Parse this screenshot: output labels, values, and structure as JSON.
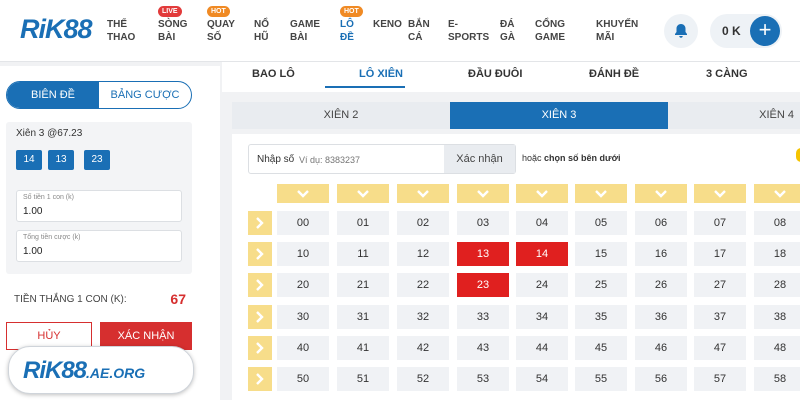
{
  "header": {
    "logo": "RiK88",
    "nav": [
      {
        "label": "THỂ\nTHAO",
        "badge": ""
      },
      {
        "label": "SÒNG\nBÀI",
        "badge": "LIVE"
      },
      {
        "label": "QUAY\nSỐ",
        "badge": "HOT"
      },
      {
        "label": "NỔ\nHŨ",
        "badge": ""
      },
      {
        "label": "GAME\nBÀI",
        "badge": ""
      },
      {
        "label": "LÔ\nĐỀ",
        "badge": "HOT",
        "active": true
      },
      {
        "label": "KENO",
        "badge": ""
      },
      {
        "label": "BẮN\nCÁ",
        "badge": ""
      },
      {
        "label": "E-\nSPORTS",
        "badge": ""
      },
      {
        "label": "ĐÁ\nGÀ",
        "badge": ""
      },
      {
        "label": "CỔNG\nGAME",
        "badge": ""
      },
      {
        "label": "KHUYẾN\nMÃI",
        "badge": ""
      }
    ],
    "balance": "0 K",
    "plus": "+"
  },
  "left": {
    "segment": [
      "BIÊN ĐỀ",
      "BẢNG CƯỢC"
    ],
    "bet_title": "Xiên 3 @67.23",
    "chips": [
      "14",
      "13",
      "23"
    ],
    "field1": {
      "label": "Số tiền 1 con (k)",
      "value": "1.00"
    },
    "field2": {
      "label": "Tổng tiền cược (k)",
      "value": "1.00"
    },
    "win_label": "TIỀN THẮNG 1 CON (K):",
    "win_value": "67",
    "cancel": "HỦY",
    "confirm": "XÁC NHẬN",
    "brand": "RiK88",
    "brand_domain": ".AE.ORG"
  },
  "main": {
    "tabs": [
      "BAO LÔ",
      "LÔ XIÊN",
      "ĐẦU ĐUÔI",
      "ĐÁNH ĐỀ",
      "3 CÀNG"
    ],
    "sub_tabs": [
      "XIÊN 2",
      "XIÊN 3",
      "XIÊN 4"
    ],
    "input_label": "Nhập số",
    "input_placeholder": "Ví dụ: 8383237",
    "input_button": "Xác nhận",
    "hint_prefix": "hoặc",
    "hint_bold": "chọn số bên dưới",
    "grid_rows": [
      [
        "00",
        "01",
        "02",
        "03",
        "04",
        "05",
        "06",
        "07",
        "08"
      ],
      [
        "10",
        "11",
        "12",
        "13",
        "14",
        "15",
        "16",
        "17",
        "18"
      ],
      [
        "20",
        "21",
        "22",
        "23",
        "24",
        "25",
        "26",
        "27",
        "28"
      ],
      [
        "30",
        "31",
        "32",
        "33",
        "34",
        "35",
        "36",
        "37",
        "38"
      ],
      [
        "40",
        "41",
        "42",
        "43",
        "44",
        "45",
        "46",
        "47",
        "48"
      ],
      [
        "50",
        "51",
        "52",
        "53",
        "54",
        "55",
        "56",
        "57",
        "58"
      ]
    ],
    "selected": [
      "13",
      "14",
      "23"
    ]
  },
  "colors": {
    "primary": "#1a6fb5",
    "selected": "#e0201f",
    "header_yellow": "#f7dd8a"
  }
}
